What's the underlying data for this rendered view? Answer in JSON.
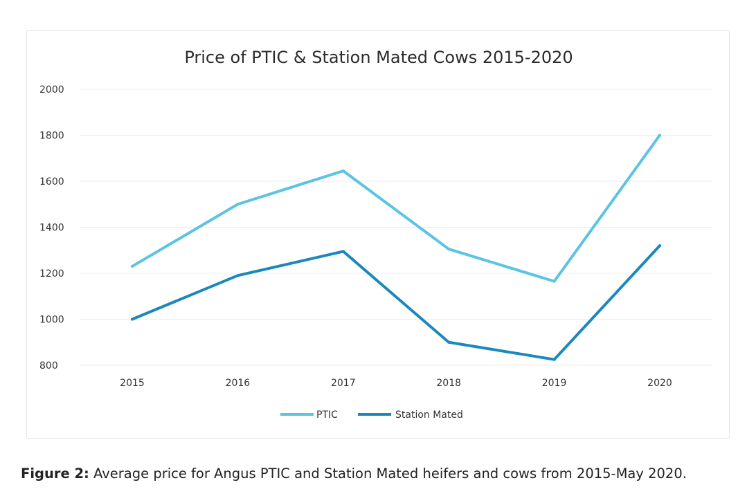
{
  "chart_data": {
    "type": "line",
    "title": "Price of PTIC & Station Mated Cows 2015-2020",
    "categories": [
      "2015",
      "2016",
      "2017",
      "2018",
      "2019",
      "2020"
    ],
    "series": [
      {
        "name": "PTIC",
        "values": [
          1230,
          1500,
          1645,
          1305,
          1165,
          1800
        ]
      },
      {
        "name": "Station Mated",
        "values": [
          1000,
          1190,
          1295,
          900,
          825,
          1320
        ]
      }
    ],
    "ylim": [
      800,
      2000
    ],
    "yticks": [
      "800",
      "1000",
      "1200",
      "1400",
      "1600",
      "1800",
      "2000"
    ],
    "grid": true,
    "legend": "bottom-center",
    "colors": {
      "PTIC": "#5bc3e3",
      "Station Mated": "#1a87bd",
      "grid": "#e8eef2"
    }
  },
  "caption": {
    "label": "Figure 2:",
    "text": " Average price for Angus PTIC and Station Mated heifers and cows from 2015-May 2020."
  }
}
